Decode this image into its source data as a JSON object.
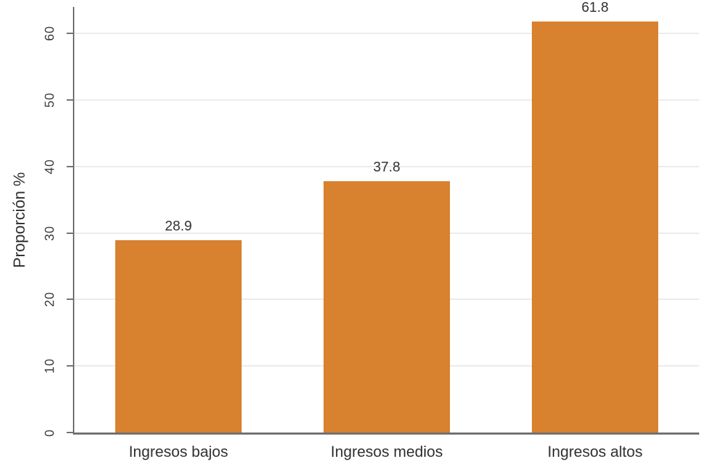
{
  "chart_data": {
    "type": "bar",
    "title": "",
    "categories": [
      "Ingresos bajos",
      "Ingresos medios",
      "Ingresos altos"
    ],
    "values": [
      28.9,
      37.8,
      61.8
    ],
    "value_labels": [
      "28.9",
      "37.8",
      "61.8"
    ],
    "xlabel": "",
    "ylabel": "Proporción %",
    "ylim": [
      0,
      64
    ],
    "yticks": [
      0,
      10,
      20,
      30,
      40,
      50,
      60
    ],
    "grid": "horizontal-light",
    "legend": "none",
    "colors": {
      "bar": "#D8812F",
      "axis": "#6F6F6F",
      "gridline": "#EBEBEB",
      "tick_text": "#3B3B3B",
      "label_text": "#303030",
      "background": "#FFFFFF"
    }
  }
}
